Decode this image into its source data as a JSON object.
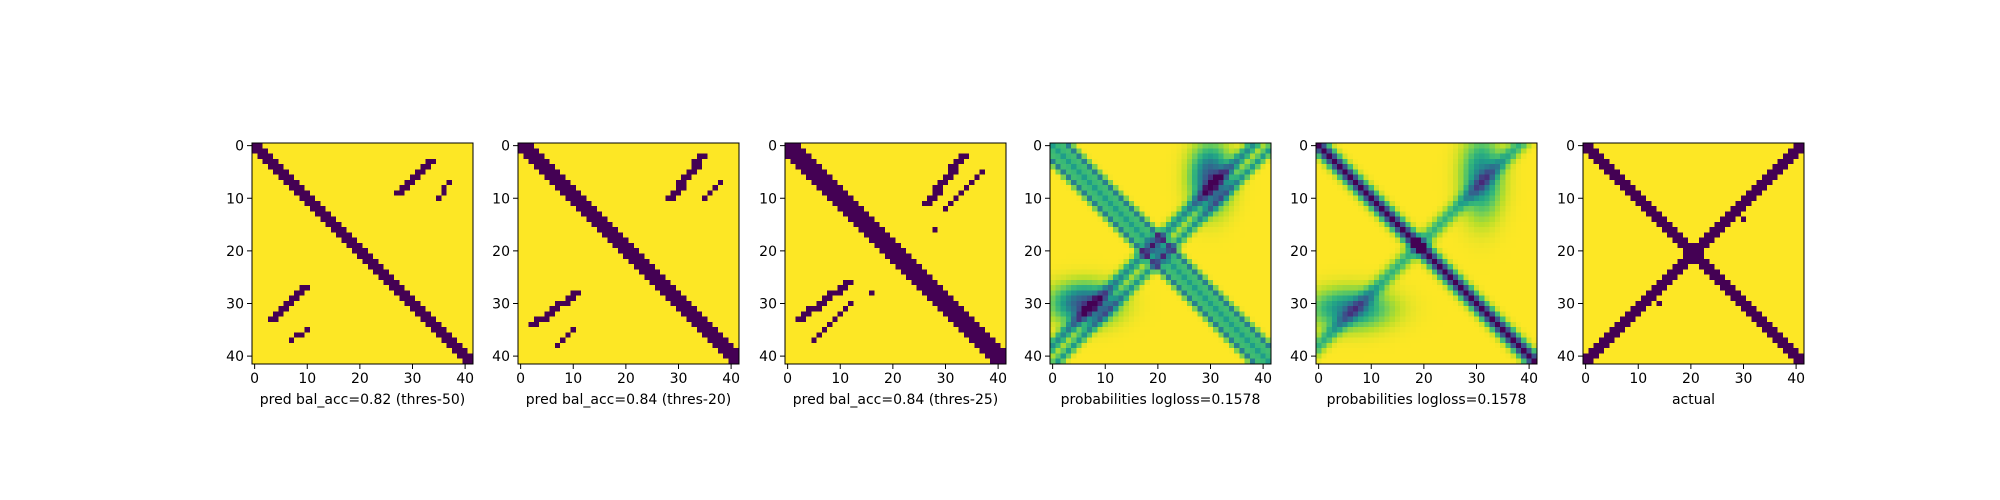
{
  "figure": {
    "background": "#ffffff",
    "colormap": "viridis",
    "colors": {
      "low": "#440154",
      "high": "#fde725"
    }
  },
  "chart_data": [
    {
      "type": "heatmap",
      "xlabel": "pred bal_acc=0.82 (thres-50)",
      "size": 42,
      "xlim": [
        0,
        41
      ],
      "ylim": [
        41,
        0
      ],
      "xticks": [
        0,
        10,
        20,
        30,
        40
      ],
      "yticks": [
        0,
        10,
        20,
        30,
        40
      ],
      "values": "binary",
      "bands": [
        {
          "kind": "diag",
          "offset_from": -1,
          "offset_to": 1,
          "value": 0
        }
      ],
      "segments": [
        {
          "kind": "anti",
          "from": [
            27,
            9
          ],
          "to": [
            33,
            3
          ],
          "thickness": 1,
          "value": 0
        },
        {
          "kind": "anti",
          "from": [
            9,
            27
          ],
          "to": [
            3,
            33
          ],
          "thickness": 1,
          "value": 0
        },
        {
          "kind": "anti",
          "from": [
            35,
            10
          ],
          "to": [
            37,
            7
          ],
          "thickness": 0,
          "value": 0
        },
        {
          "kind": "anti",
          "from": [
            7,
            37
          ],
          "to": [
            10,
            35
          ],
          "thickness": 0,
          "value": 0
        }
      ]
    },
    {
      "type": "heatmap",
      "xlabel": "pred bal_acc=0.84 (thres-20)",
      "size": 42,
      "xlim": [
        0,
        41
      ],
      "ylim": [
        41,
        0
      ],
      "xticks": [
        0,
        10,
        20,
        30,
        40
      ],
      "yticks": [
        0,
        10,
        20,
        30,
        40
      ],
      "values": "binary",
      "bands": [
        {
          "kind": "diag",
          "offset_from": -1,
          "offset_to": 2,
          "value": 0
        }
      ],
      "segments": [
        {
          "kind": "anti",
          "from": [
            28,
            10
          ],
          "to": [
            34,
            2
          ],
          "thickness": 1,
          "value": 0
        },
        {
          "kind": "anti",
          "from": [
            10,
            28
          ],
          "to": [
            2,
            34
          ],
          "thickness": 1,
          "value": 0
        },
        {
          "kind": "anti",
          "from": [
            35,
            10
          ],
          "to": [
            38,
            7
          ],
          "thickness": 0,
          "value": 0
        },
        {
          "kind": "anti",
          "from": [
            7,
            38
          ],
          "to": [
            10,
            35
          ],
          "thickness": 0,
          "value": 0
        }
      ]
    },
    {
      "type": "heatmap",
      "xlabel": "pred bal_acc=0.84 (thres-25)",
      "size": 42,
      "xlim": [
        0,
        41
      ],
      "ylim": [
        41,
        0
      ],
      "xticks": [
        0,
        10,
        20,
        30,
        40
      ],
      "yticks": [
        0,
        10,
        20,
        30,
        40
      ],
      "values": "binary",
      "bands": [
        {
          "kind": "diag",
          "offset_from": -2,
          "offset_to": 2,
          "value": 0
        }
      ],
      "segments": [
        {
          "kind": "anti",
          "from": [
            26,
            11
          ],
          "to": [
            33,
            2
          ],
          "thickness": 1,
          "value": 0
        },
        {
          "kind": "anti",
          "from": [
            11,
            26
          ],
          "to": [
            2,
            33
          ],
          "thickness": 1,
          "value": 0
        },
        {
          "kind": "anti",
          "from": [
            30,
            12
          ],
          "to": [
            37,
            5
          ],
          "thickness": 0,
          "value": 0
        },
        {
          "kind": "anti",
          "from": [
            5,
            37
          ],
          "to": [
            12,
            30
          ],
          "thickness": 0,
          "value": 0
        }
      ],
      "points": [
        [
          28,
          16
        ],
        [
          16,
          28
        ]
      ]
    },
    {
      "type": "heatmap",
      "xlabel": "probabilities logloss=0.1578",
      "size": 42,
      "xlim": [
        0,
        41
      ],
      "ylim": [
        41,
        0
      ],
      "xticks": [
        0,
        10,
        20,
        30,
        40
      ],
      "yticks": [
        0,
        10,
        20,
        30,
        40
      ],
      "values": "continuous",
      "value_range": [
        0,
        1
      ],
      "bands": [
        {
          "kind": "diag",
          "offset": 0,
          "spread": 1.2,
          "amplitude": 0.45
        },
        {
          "kind": "diag",
          "offset": 3,
          "spread": 0.7,
          "amplitude": 0.55
        },
        {
          "kind": "diag",
          "offset": -3,
          "spread": 0.7,
          "amplitude": 0.55
        },
        {
          "kind": "anti",
          "sum": 38,
          "spread": 1.1,
          "amplitude": 0.5
        },
        {
          "kind": "anti",
          "sum": 42,
          "spread": 0.9,
          "amplitude": 0.45
        }
      ],
      "blobs": [
        {
          "center": [
            30,
            6
          ],
          "spread": [
            2.5,
            4
          ],
          "amplitude": 0.75
        },
        {
          "center": [
            6,
            30
          ],
          "spread": [
            4,
            2.5
          ],
          "amplitude": 0.75
        }
      ]
    },
    {
      "type": "heatmap",
      "xlabel": "probabilities logloss=0.1578",
      "size": 42,
      "xlim": [
        0,
        41
      ],
      "ylim": [
        41,
        0
      ],
      "xticks": [
        0,
        10,
        20,
        30,
        40
      ],
      "yticks": [
        0,
        10,
        20,
        30,
        40
      ],
      "values": "continuous",
      "value_range": [
        0,
        1
      ],
      "bands": [
        {
          "kind": "diag",
          "offset": 0,
          "spread": 1.3,
          "amplitude": 1.0
        },
        {
          "kind": "anti",
          "sum": 38,
          "spread": 1.3,
          "amplitude": 0.35
        }
      ],
      "blobs": [
        {
          "center": [
            31,
            6
          ],
          "spread": [
            2.5,
            5
          ],
          "amplitude": 0.55
        },
        {
          "center": [
            6,
            31
          ],
          "spread": [
            5,
            2.5
          ],
          "amplitude": 0.55
        }
      ],
      "caption_override": "probabilities logloss=0.1578"
    },
    {
      "type": "heatmap",
      "xlabel": "actual",
      "size": 42,
      "xlim": [
        0,
        41
      ],
      "ylim": [
        41,
        0
      ],
      "xticks": [
        0,
        10,
        20,
        30,
        40
      ],
      "yticks": [
        0,
        10,
        20,
        30,
        40
      ],
      "values": "binary",
      "bands": [
        {
          "kind": "diag",
          "offset_from": -1,
          "offset_to": 1,
          "value": 0
        },
        {
          "kind": "anti",
          "sum_from": 40,
          "sum_to": 42,
          "value": 0
        }
      ],
      "points": [
        [
          29,
          13
        ],
        [
          13,
          29
        ],
        [
          30,
          14
        ],
        [
          14,
          30
        ]
      ]
    }
  ]
}
